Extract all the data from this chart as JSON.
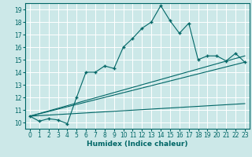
{
  "xlabel": "Humidex (Indice chaleur)",
  "background_color": "#cce8e8",
  "line_color": "#006666",
  "grid_color": "#ffffff",
  "xlim": [
    -0.5,
    23.5
  ],
  "ylim": [
    9.5,
    19.5
  ],
  "xticks": [
    0,
    1,
    2,
    3,
    4,
    5,
    6,
    7,
    8,
    9,
    10,
    11,
    12,
    13,
    14,
    15,
    16,
    17,
    18,
    19,
    20,
    21,
    22,
    23
  ],
  "yticks": [
    10,
    11,
    12,
    13,
    14,
    15,
    16,
    17,
    18,
    19
  ],
  "main_x": [
    0,
    1,
    2,
    3,
    4,
    5,
    6,
    7,
    8,
    9,
    10,
    11,
    12,
    13,
    14,
    15,
    16,
    17,
    18,
    19,
    20,
    21,
    22,
    23
  ],
  "main_y": [
    10.5,
    10.1,
    10.3,
    10.2,
    9.9,
    12.0,
    14.0,
    14.0,
    14.5,
    14.3,
    16.0,
    16.7,
    17.5,
    18.0,
    19.3,
    18.1,
    17.1,
    17.9,
    15.0,
    15.3,
    15.3,
    14.9,
    15.5,
    14.8
  ],
  "band_lines": [
    {
      "x": [
        0,
        23
      ],
      "y": [
        10.5,
        15.3
      ]
    },
    {
      "x": [
        0,
        23
      ],
      "y": [
        10.5,
        14.8
      ]
    },
    {
      "x": [
        0,
        23
      ],
      "y": [
        10.5,
        11.5
      ]
    }
  ],
  "xlabel_fontsize": 6.5,
  "tick_fontsize": 5.5
}
